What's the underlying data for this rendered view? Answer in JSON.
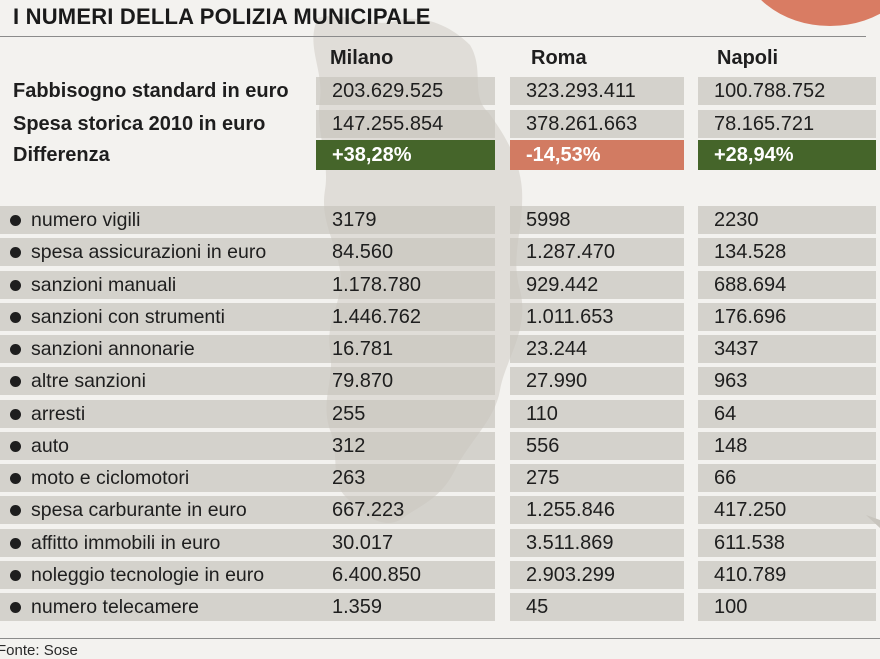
{
  "title": "I NUMERI DELLA POLIZIA MUNICIPALE",
  "columns": [
    "Milano",
    "Roma",
    "Napoli"
  ],
  "summary_rows": [
    {
      "label": "Fabbisogno standard in euro",
      "values": [
        "203.629.525",
        "323.293.411",
        "100.788.752"
      ]
    },
    {
      "label": "Spesa storica 2010 in euro",
      "values": [
        "147.255.854",
        "378.261.663",
        "78.165.721"
      ]
    },
    {
      "label": "Differenza",
      "values": [
        "+38,28%",
        "-14,53%",
        "+28,94%"
      ]
    }
  ],
  "difference_colors": [
    "#45652a",
    "#d27b62",
    "#45652a"
  ],
  "detail_rows": [
    {
      "label": "numero vigili",
      "values": [
        "3179",
        "5998",
        "2230"
      ]
    },
    {
      "label": "spesa assicurazioni in euro",
      "values": [
        "84.560",
        "1.287.470",
        "134.528"
      ]
    },
    {
      "label": "sanzioni manuali",
      "values": [
        "1.178.780",
        "929.442",
        "688.694"
      ]
    },
    {
      "label": "sanzioni con strumenti",
      "values": [
        "1.446.762",
        "1.011.653",
        "176.696"
      ]
    },
    {
      "label": "sanzioni annonarie",
      "values": [
        "16.781",
        "23.244",
        "3437"
      ]
    },
    {
      "label": "altre sanzioni",
      "values": [
        "79.870",
        "27.990",
        "963"
      ]
    },
    {
      "label": "arresti",
      "values": [
        "255",
        "110",
        "64"
      ]
    },
    {
      "label": "auto",
      "values": [
        "312",
        "556",
        "148"
      ]
    },
    {
      "label": "moto e ciclomotori",
      "values": [
        "263",
        "275",
        "66"
      ]
    },
    {
      "label": "spesa carburante in euro",
      "values": [
        "667.223",
        "1.255.846",
        "417.250"
      ]
    },
    {
      "label": "affitto immobili in euro",
      "values": [
        "30.017",
        "3.511.869",
        "611.538"
      ]
    },
    {
      "label": "noleggio tecnologie in euro",
      "values": [
        "6.400.850",
        "2.903.299",
        "410.789"
      ]
    },
    {
      "label": "numero telecamere",
      "values": [
        "1.359",
        "45",
        "100"
      ]
    }
  ],
  "source": "Fonte: Sose"
}
